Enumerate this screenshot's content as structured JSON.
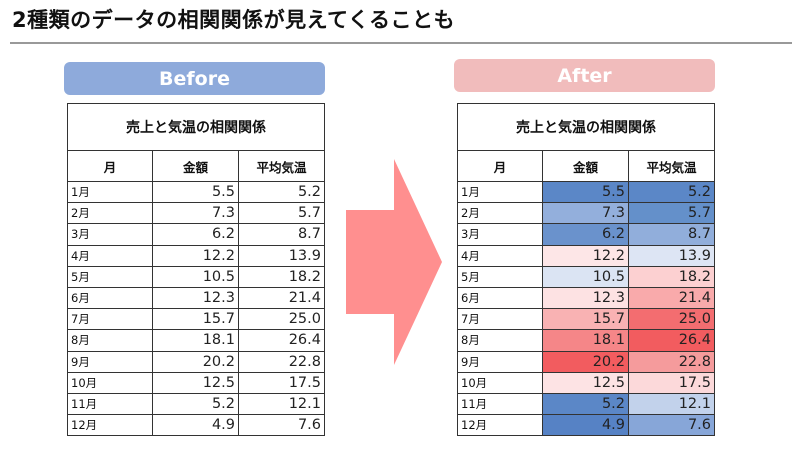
{
  "slide": {
    "title": "2種類のデータの相関関係が見えてくることも"
  },
  "before": {
    "label": "Before",
    "color": "#8eaadb"
  },
  "after": {
    "label": "After",
    "color": "#f1bcbc"
  },
  "arrow": {
    "icon": "right-arrow-icon",
    "color": "#ff8f8f"
  },
  "table": {
    "title": "売上と気温の相関関係",
    "headers": [
      "月",
      "金額",
      "平均気温"
    ],
    "rows": [
      {
        "month": "1月",
        "amount": "5.5",
        "temp": "5.2"
      },
      {
        "month": "2月",
        "amount": "7.3",
        "temp": "5.7"
      },
      {
        "month": "3月",
        "amount": "6.2",
        "temp": "8.7"
      },
      {
        "month": "4月",
        "amount": "12.2",
        "temp": "13.9"
      },
      {
        "month": "5月",
        "amount": "10.5",
        "temp": "18.2"
      },
      {
        "month": "6月",
        "amount": "12.3",
        "temp": "21.4"
      },
      {
        "month": "7月",
        "amount": "15.7",
        "temp": "25.0"
      },
      {
        "month": "8月",
        "amount": "18.1",
        "temp": "26.4"
      },
      {
        "month": "9月",
        "amount": "20.2",
        "temp": "22.8"
      },
      {
        "month": "10月",
        "amount": "12.5",
        "temp": "17.5"
      },
      {
        "month": "11月",
        "amount": "5.2",
        "temp": "12.1"
      },
      {
        "month": "12月",
        "amount": "4.9",
        "temp": "7.6"
      }
    ]
  },
  "heatmap_colors": {
    "amount": [
      "#5b87c7",
      "#93afdc",
      "#6a92cc",
      "#fde6e7",
      "#dbe4f3",
      "#fde2e3",
      "#f9b2b3",
      "#f58688",
      "#f25c5f",
      "#fde3e4",
      "#5b87c7",
      "#5682c5"
    ],
    "temp": [
      "#5b87c7",
      "#6490ca",
      "#91aedb",
      "#dde5f4",
      "#fcd0d1",
      "#f9aaab",
      "#f36d70",
      "#f25c5f",
      "#f59b9c",
      "#fcd9da",
      "#c2d2eb",
      "#87a6d8"
    ]
  }
}
